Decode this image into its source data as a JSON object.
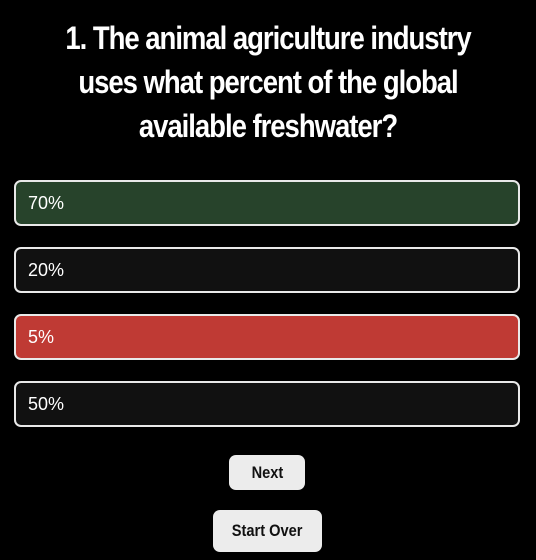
{
  "quiz": {
    "question": "1. The animal agriculture industry uses what percent of the global available freshwater?",
    "options": [
      {
        "label": "70%",
        "state": "correct"
      },
      {
        "label": "20%",
        "state": "neutral"
      },
      {
        "label": "5%",
        "state": "incorrect"
      },
      {
        "label": "50%",
        "state": "neutral"
      }
    ]
  },
  "buttons": {
    "next_label": "Next",
    "start_over_label": "Start Over"
  },
  "colors": {
    "background": "#000000",
    "correct": "#27432b",
    "incorrect": "#bf3a34",
    "neutral": "#111111",
    "button": "#ececec"
  }
}
